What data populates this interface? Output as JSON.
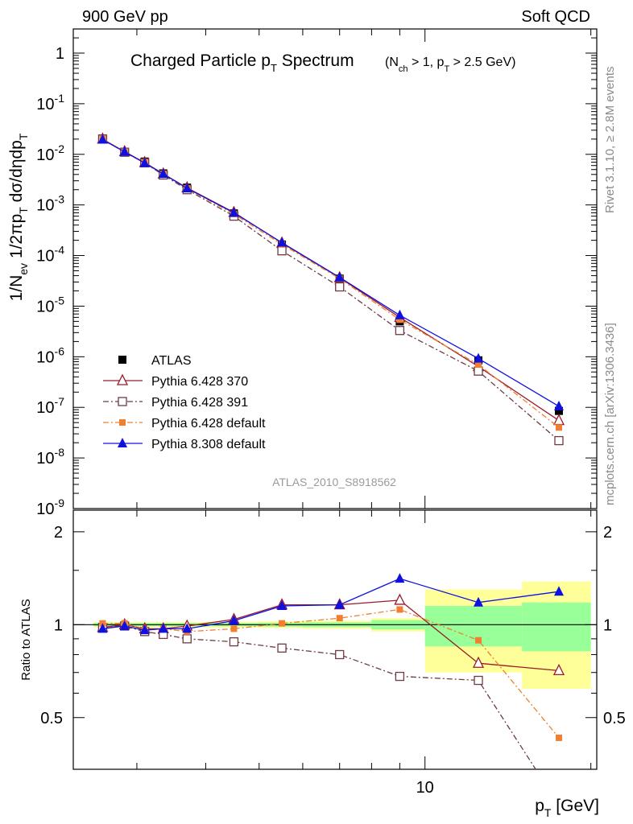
{
  "header": {
    "left": "900 GeV pp",
    "right": "Soft QCD"
  },
  "side_text": {
    "rivet": "Rivet 3.1.10, ≥ 2.8M events",
    "mcplots": "mcplots.cern.ch [arXiv:1306.3436]"
  },
  "analysis_id": "ATLAS_2010_S8918562",
  "chart_data": [
    {
      "type": "scatter",
      "title": "Charged Particle pT Spectrum",
      "subtitle": "(Nch > 1, pT > 2.5 GeV)",
      "ylabel": "1/Nev 1/2πpT dσ/dηdpT",
      "xlabel": "pT [GeV]",
      "xscale": "log",
      "yscale": "log",
      "xlim": [
        2.3,
        20.5
      ],
      "ylim": [
        1e-09,
        3
      ],
      "yticks": [
        "1",
        "10^-1",
        "10^-2",
        "10^-3",
        "10^-4",
        "10^-5",
        "10^-6",
        "10^-7",
        "10^-8",
        "10^-9"
      ],
      "legend_position": "lower-left",
      "x": [
        2.6,
        2.85,
        3.1,
        3.35,
        3.7,
        4.5,
        5.5,
        7.0,
        9.0,
        12.5,
        17.5
      ],
      "series": [
        {
          "name": "ATLAS",
          "color": "#000000",
          "marker": "square-filled",
          "line": "none",
          "values": [
            0.0205,
            0.0112,
            0.0072,
            0.0042,
            0.0022,
            0.00068,
            0.000165,
            3.5e-05,
            5e-06,
            8.5e-07,
            8.5e-08
          ]
        },
        {
          "name": "Pythia 6.428 370",
          "color": "#9a1a28",
          "marker": "triangle-open",
          "line": "solid",
          "values": [
            0.02,
            0.0113,
            0.0069,
            0.0041,
            0.00218,
            0.00071,
            0.000177,
            3.65e-05,
            6e-06,
            6.4e-07,
            5.5e-08
          ]
        },
        {
          "name": "Pythia 6.428 391",
          "color": "#6e3a44",
          "marker": "square-open",
          "line": "dashdot",
          "values": [
            0.02,
            0.011,
            0.0068,
            0.0039,
            0.002,
            0.0006,
            0.000124,
            2.4e-05,
            3.3e-06,
            5.2e-07,
            2.2e-08
          ]
        },
        {
          "name": "Pythia 6.428 default",
          "color": "#f08030",
          "marker": "square-filled-small",
          "line": "dashdot",
          "values": [
            0.0205,
            0.0112,
            0.0069,
            0.0041,
            0.00212,
            0.00066,
            0.000166,
            3.5e-05,
            5.4e-06,
            7e-07,
            4e-08
          ]
        },
        {
          "name": "Pythia 8.308 default",
          "color": "#1010e0",
          "marker": "triangle-filled",
          "line": "solid",
          "values": [
            0.0195,
            0.0112,
            0.0067,
            0.0041,
            0.00212,
            0.0007,
            0.00018,
            3.7e-05,
            6.6e-06,
            9.2e-07,
            1.05e-07
          ]
        }
      ]
    },
    {
      "type": "scatter",
      "ylabel": "Ratio to ATLAS",
      "xlabel": "pT [GeV]",
      "xscale": "log",
      "ylim": [
        0.34,
        2.35
      ],
      "yticks": [
        "0.5",
        "1",
        "2"
      ],
      "xticks": [
        "10"
      ],
      "x": [
        2.6,
        2.85,
        3.1,
        3.35,
        3.7,
        4.5,
        5.5,
        7.0,
        9.0,
        12.5,
        17.5
      ],
      "bin_edges": [
        2.5,
        2.75,
        3.0,
        3.25,
        3.5,
        4.0,
        5.0,
        6.0,
        8.0,
        10.0,
        15.0,
        20.0
      ],
      "band_stat_half_width": [
        0.012,
        0.012,
        0.012,
        0.012,
        0.012,
        0.012,
        0.015,
        0.018,
        0.035,
        0.15,
        0.18
      ],
      "band_total_half_width": [
        0.02,
        0.02,
        0.02,
        0.02,
        0.02,
        0.022,
        0.025,
        0.03,
        0.05,
        0.3,
        0.38
      ],
      "series": [
        {
          "name": "Pythia 6.428 370",
          "color": "#9a1a28",
          "values": [
            0.98,
            1.0,
            0.97,
            0.97,
            0.99,
            1.04,
            1.16,
            1.16,
            1.2,
            0.75,
            0.71
          ]
        },
        {
          "name": "Pythia 6.428 391",
          "color": "#6e3a44",
          "values": [
            0.98,
            0.99,
            0.95,
            0.93,
            0.9,
            0.88,
            0.84,
            0.8,
            0.68,
            0.66,
            0.26
          ]
        },
        {
          "name": "Pythia 6.428 default",
          "color": "#f08030",
          "values": [
            1.01,
            1.01,
            0.96,
            0.97,
            0.95,
            0.97,
            1.01,
            1.05,
            1.12,
            0.89,
            0.43
          ]
        },
        {
          "name": "Pythia 8.308 default",
          "color": "#1010e0",
          "values": [
            0.97,
            0.99,
            0.96,
            0.97,
            0.97,
            1.03,
            1.15,
            1.16,
            1.41,
            1.18,
            1.28
          ]
        }
      ]
    }
  ]
}
